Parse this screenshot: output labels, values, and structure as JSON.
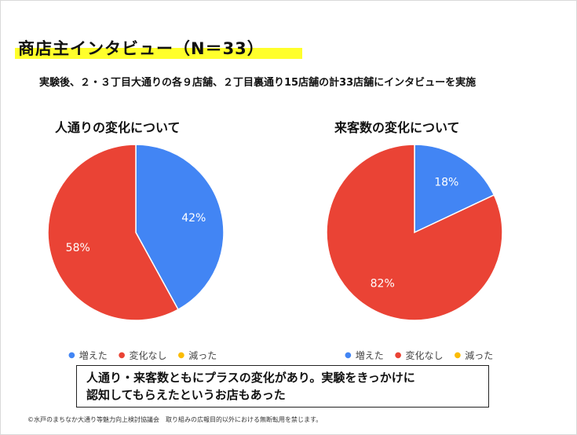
{
  "header": {
    "title": "商店主インタビュー（N＝33）",
    "subtitle": "実験後、２・３丁目大通りの各９店舗、２丁目裏通り15店舗の計33店舗にインタビューを実施"
  },
  "chart_data": [
    {
      "type": "pie",
      "title": "人通りの変化について",
      "categories": [
        "増えた",
        "変化なし",
        "減った"
      ],
      "values": [
        42,
        58,
        0
      ],
      "labels": [
        "42%",
        "58%",
        ""
      ],
      "colors": [
        "#4285f4",
        "#ea4335",
        "#fbbc04"
      ],
      "legend_position": "bottom"
    },
    {
      "type": "pie",
      "title": "来客数の変化について",
      "categories": [
        "増えた",
        "変化なし",
        "減った"
      ],
      "values": [
        18,
        82,
        0
      ],
      "labels": [
        "18%",
        "82%",
        ""
      ],
      "colors": [
        "#4285f4",
        "#ea4335",
        "#fbbc04"
      ],
      "legend_position": "bottom"
    }
  ],
  "note": {
    "line1": "人通り・来客数ともにプラスの変化があり。実験をきっかけに",
    "line2": "認知してもらえたというお店もあった"
  },
  "footer": {
    "copyright": "©水戸のまちなか大通り等魅力向上検討協議会　取り組みの広報目的以外における無断転用を禁じます。"
  }
}
